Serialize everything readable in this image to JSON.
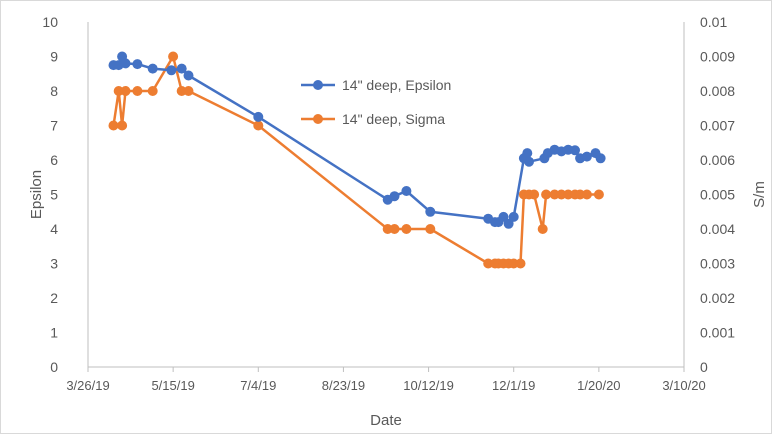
{
  "chart_data": {
    "type": "line",
    "title": "",
    "xlabel": "Date",
    "ylabel": "Epsilon",
    "y2label": "S/m",
    "x_ticks": [
      "3/26/19",
      "5/15/19",
      "7/4/19",
      "8/23/19",
      "10/12/19",
      "12/1/19",
      "1/20/20",
      "3/10/20"
    ],
    "xlim": [
      "3/26/19",
      "3/10/20"
    ],
    "ylim": [
      0,
      10
    ],
    "y_ticks": [
      "0",
      "1",
      "2",
      "3",
      "4",
      "5",
      "6",
      "7",
      "8",
      "9",
      "10"
    ],
    "y2lim": [
      0,
      0.01
    ],
    "y2_ticks": [
      "0",
      "0.001",
      "0.002",
      "0.003",
      "0.004",
      "0.005",
      "0.006",
      "0.007",
      "0.008",
      "0.009",
      "0.01"
    ],
    "grid": false,
    "legend_position": "top-center",
    "series": [
      {
        "name": "14\" deep, Epsilon",
        "axis": "left",
        "color": "#4472c4",
        "points": [
          [
            "4/10/19",
            8.75
          ],
          [
            "4/13/19",
            8.75
          ],
          [
            "4/15/19",
            9.0
          ],
          [
            "4/17/19",
            8.8
          ],
          [
            "4/24/19",
            8.78
          ],
          [
            "5/3/19",
            8.65
          ],
          [
            "5/14/19",
            8.6
          ],
          [
            "5/20/19",
            8.65
          ],
          [
            "5/24/19",
            8.45
          ],
          [
            "7/4/19",
            7.25
          ],
          [
            "9/18/19",
            4.85
          ],
          [
            "9/22/19",
            4.95
          ],
          [
            "9/29/19",
            5.1
          ],
          [
            "10/13/19",
            4.5
          ],
          [
            "11/16/19",
            4.3
          ],
          [
            "11/20/19",
            4.2
          ],
          [
            "11/22/19",
            4.2
          ],
          [
            "11/25/19",
            4.35
          ],
          [
            "11/28/19",
            4.15
          ],
          [
            "12/1/19",
            4.35
          ],
          [
            "12/7/19",
            6.05
          ],
          [
            "12/9/19",
            6.2
          ],
          [
            "12/10/19",
            5.95
          ],
          [
            "12/19/19",
            6.05
          ],
          [
            "12/21/19",
            6.2
          ],
          [
            "12/25/19",
            6.3
          ],
          [
            "12/29/19",
            6.25
          ],
          [
            "1/2/20",
            6.3
          ],
          [
            "1/6/20",
            6.28
          ],
          [
            "1/9/20",
            6.05
          ],
          [
            "1/13/20",
            6.1
          ],
          [
            "1/18/20",
            6.2
          ],
          [
            "1/21/20",
            6.05
          ]
        ]
      },
      {
        "name": "14\" deep, Sigma",
        "axis": "right",
        "color": "#ed7d31",
        "points": [
          [
            "4/10/19",
            0.007
          ],
          [
            "4/13/19",
            0.008
          ],
          [
            "4/15/19",
            0.007
          ],
          [
            "4/17/19",
            0.008
          ],
          [
            "4/24/19",
            0.008
          ],
          [
            "5/3/19",
            0.008
          ],
          [
            "5/15/19",
            0.009
          ],
          [
            "5/20/19",
            0.008
          ],
          [
            "5/24/19",
            0.008
          ],
          [
            "7/4/19",
            0.007
          ],
          [
            "9/18/19",
            0.004
          ],
          [
            "9/22/19",
            0.004
          ],
          [
            "9/29/19",
            0.004
          ],
          [
            "10/13/19",
            0.004
          ],
          [
            "11/16/19",
            0.003
          ],
          [
            "11/20/19",
            0.003
          ],
          [
            "11/22/19",
            0.003
          ],
          [
            "11/25/19",
            0.003
          ],
          [
            "11/28/19",
            0.003
          ],
          [
            "12/1/19",
            0.003
          ],
          [
            "12/5/19",
            0.003
          ],
          [
            "12/7/19",
            0.005
          ],
          [
            "12/10/19",
            0.005
          ],
          [
            "12/13/19",
            0.005
          ],
          [
            "12/18/19",
            0.004
          ],
          [
            "12/20/19",
            0.005
          ],
          [
            "12/25/19",
            0.005
          ],
          [
            "12/29/19",
            0.005
          ],
          [
            "1/2/20",
            0.005
          ],
          [
            "1/6/20",
            0.005
          ],
          [
            "1/9/20",
            0.005
          ],
          [
            "1/13/20",
            0.005
          ],
          [
            "1/20/20",
            0.005
          ]
        ]
      }
    ]
  }
}
